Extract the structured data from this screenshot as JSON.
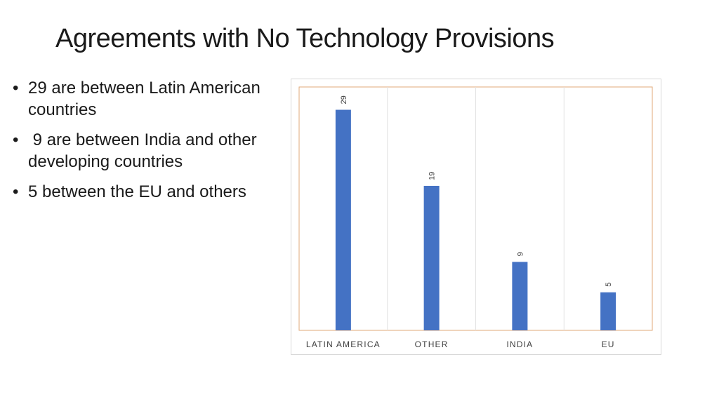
{
  "slide": {
    "title": "Agreements with No Technology Provisions",
    "bullets": [
      "29 are between Latin American countries",
      " 9 are between India and other developing countries",
      "5 between the EU and others"
    ]
  },
  "chart_data": {
    "type": "bar",
    "categories": [
      "LATIN AMERICA",
      "OTHER",
      "INDIA",
      "EU"
    ],
    "values": [
      29,
      19,
      9,
      5
    ],
    "title": "",
    "xlabel": "",
    "ylabel": "",
    "ylim": [
      0,
      32
    ],
    "grid": "vertical separators",
    "legend": "none",
    "data_labels": "rotated, above bars",
    "colors": {
      "bar": "#4472C4",
      "plot_border": "#E0A87A",
      "grid": "#E2E2E2",
      "text": "#404040"
    }
  }
}
